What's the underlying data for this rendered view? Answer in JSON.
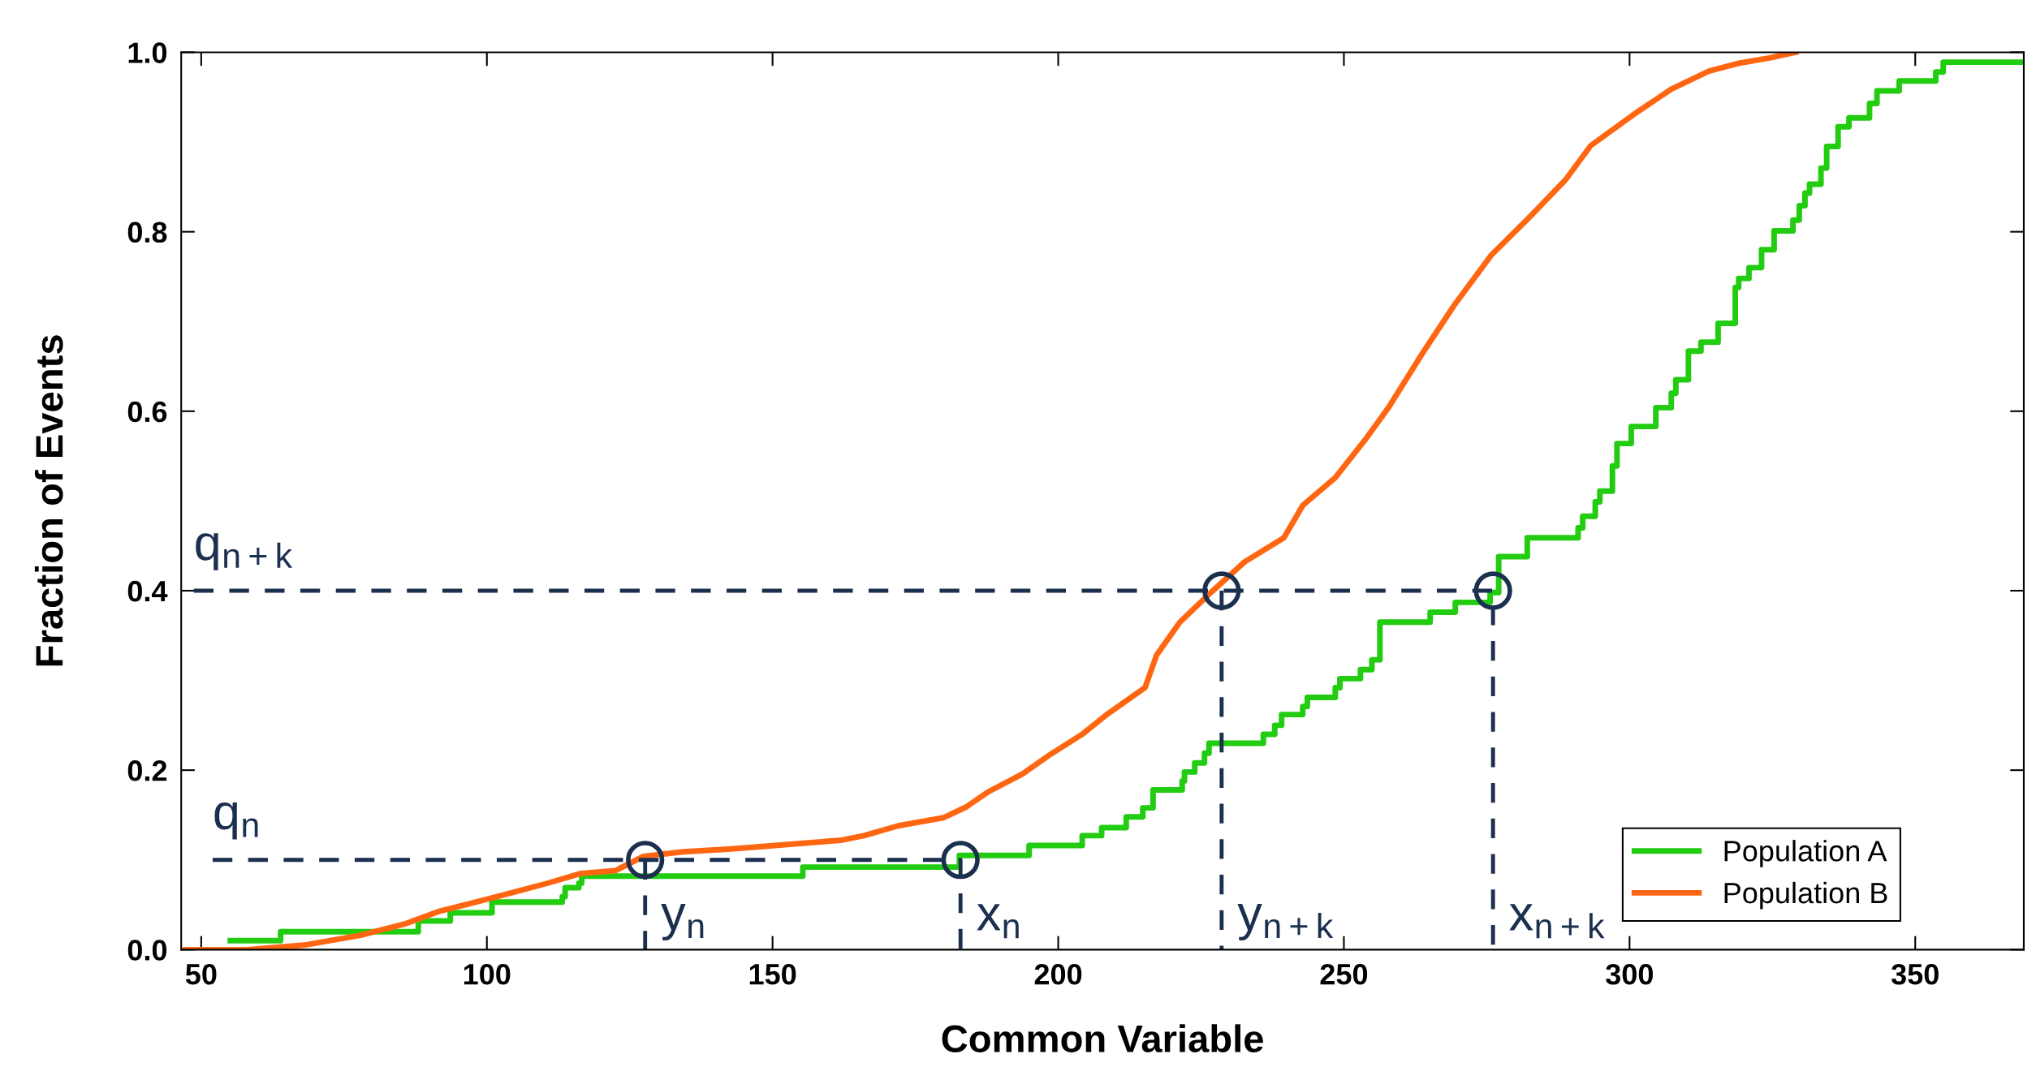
{
  "chart_data": {
    "type": "step",
    "xlabel": "Common Variable",
    "ylabel": "Fraction of Events",
    "xlim": [
      46.5,
      369
    ],
    "ylim": [
      0,
      1.0
    ],
    "xticks": [
      50,
      100,
      150,
      200,
      250,
      300,
      350
    ],
    "yticks": [
      {
        "value": 0,
        "label": "0.0"
      },
      {
        "value": 0.2,
        "label": "0.2"
      },
      {
        "value": 0.4,
        "label": "0.4"
      },
      {
        "value": 0.6,
        "label": "0.6"
      },
      {
        "value": 0.8,
        "label": "0.8"
      },
      {
        "value": 1.0,
        "label": "1.0"
      }
    ],
    "grid": false,
    "legend": "bottom right",
    "marker": "none",
    "line_style": "solid",
    "series": [
      {
        "name": "Population A",
        "color": "#22cc11",
        "x": [
          55.1,
          63.9,
          88,
          93.6,
          100.9,
          113.2,
          113.7,
          116.1,
          116.6,
          155.3,
          182.7,
          194.9,
          204.2,
          207.6,
          211.9,
          214.8,
          216.6,
          221.7,
          222.1,
          223.9,
          225.6,
          226.4,
          235.9,
          237.9,
          239.1,
          242.8,
          243.6,
          248.5,
          249.3,
          252.9,
          254.9,
          256.3,
          265.1,
          269.5,
          275.6,
          277.1,
          282.1,
          291.0,
          291.8,
          294.0,
          294.8,
          297.0,
          297.8,
          300.3,
          304.6,
          307.3,
          308.1,
          310.3,
          312.5,
          315.5,
          318.5,
          319.1,
          320.9,
          323.1,
          325.3,
          328.6,
          329.7,
          330.7,
          331.5,
          333.5,
          334.5,
          336.5,
          338.4,
          342.0,
          343.3,
          347.2,
          353.6,
          354.9,
          369
        ],
        "values": [
          0.01,
          0.02,
          0.032,
          0.041,
          0.053,
          0.059,
          0.069,
          0.074,
          0.082,
          0.092,
          0.105,
          0.116,
          0.127,
          0.136,
          0.148,
          0.158,
          0.178,
          0.188,
          0.198,
          0.208,
          0.219,
          0.23,
          0.24,
          0.25,
          0.262,
          0.271,
          0.281,
          0.292,
          0.302,
          0.312,
          0.323,
          0.365,
          0.376,
          0.387,
          0.398,
          0.438,
          0.459,
          0.47,
          0.483,
          0.499,
          0.511,
          0.539,
          0.564,
          0.583,
          0.604,
          0.62,
          0.635,
          0.667,
          0.677,
          0.698,
          0.738,
          0.748,
          0.76,
          0.78,
          0.801,
          0.813,
          0.829,
          0.843,
          0.853,
          0.871,
          0.895,
          0.917,
          0.927,
          0.943,
          0.957,
          0.968,
          0.978,
          0.989,
          0.989
        ]
      },
      {
        "name": "Population B",
        "color": "#ff6611",
        "type": "line",
        "x": [
          47.2,
          58.1,
          68,
          77.9,
          85.8,
          91.8,
          98.7,
          104.7,
          110.6,
          116.5,
          122.5,
          127.4,
          134.4,
          142.3,
          152.2,
          162.1,
          166,
          172,
          179.9,
          183.9,
          187.8,
          193.8,
          198.5,
          204.2,
          208.3,
          215.2,
          217.2,
          221.3,
          226.9,
          232.6,
          239.5,
          242.8,
          248.5,
          253.7,
          257.8,
          263.8,
          269.3,
          275.8,
          282.3,
          288.8,
          293.2,
          300.8,
          307.3,
          313.9,
          319.3,
          324.7,
          329.1
        ],
        "values": [
          0,
          0,
          0.005,
          0.016,
          0.029,
          0.043,
          0.054,
          0.064,
          0.074,
          0.085,
          0.088,
          0.104,
          0.109,
          0.112,
          0.117,
          0.122,
          0.127,
          0.138,
          0.147,
          0.159,
          0.176,
          0.196,
          0.217,
          0.24,
          0.261,
          0.292,
          0.328,
          0.365,
          0.399,
          0.432,
          0.459,
          0.495,
          0.526,
          0.568,
          0.604,
          0.665,
          0.718,
          0.774,
          0.815,
          0.858,
          0.896,
          0.931,
          0.959,
          0.979,
          0.988,
          0.994,
          1.0
        ]
      },
      {
        "color": "#1b2f4f",
        "type": "line",
        "line_style": "dashed",
        "x": [
          52,
          182.9,
          182.9
        ],
        "values": [
          0.1,
          0.1,
          0
        ]
      },
      {
        "color": "#1b2f4f",
        "type": "line",
        "line_style": "dashed",
        "x": [
          127.7,
          127.7
        ],
        "values": [
          0.1,
          0
        ]
      },
      {
        "color": "#1b2f4f",
        "type": "line",
        "line_style": "dashed",
        "x": [
          48.7,
          276.1,
          276.1
        ],
        "values": [
          0.4,
          0.4,
          0
        ]
      },
      {
        "color": "#1b2f4f",
        "type": "line",
        "line_style": "dashed",
        "x": [
          228.6,
          228.6
        ],
        "values": [
          0.4,
          0
        ]
      },
      {
        "color": "#1b2f4f",
        "type": "scatter",
        "marker": "circle",
        "x": [
          127.7,
          182.9,
          228.6,
          276.1
        ],
        "values": [
          0.1,
          0.1,
          0.4,
          0.4
        ]
      }
    ],
    "annotations": [
      {
        "text": "q$_{n}$",
        "x": 52,
        "y": 0.1
      },
      {
        "text": "q$_{n+k}$",
        "x": 48.7,
        "y": 0.4
      },
      {
        "text": "y$_{n}$",
        "x": 127.7,
        "y": 0
      },
      {
        "text": "x$_{n}$",
        "x": 182.9,
        "y": 0
      },
      {
        "text": "y$_{n+k}$",
        "x": 228.6,
        "y": 0
      },
      {
        "text": "x$_{n+k}$",
        "x": 276.1,
        "y": 0
      }
    ]
  }
}
